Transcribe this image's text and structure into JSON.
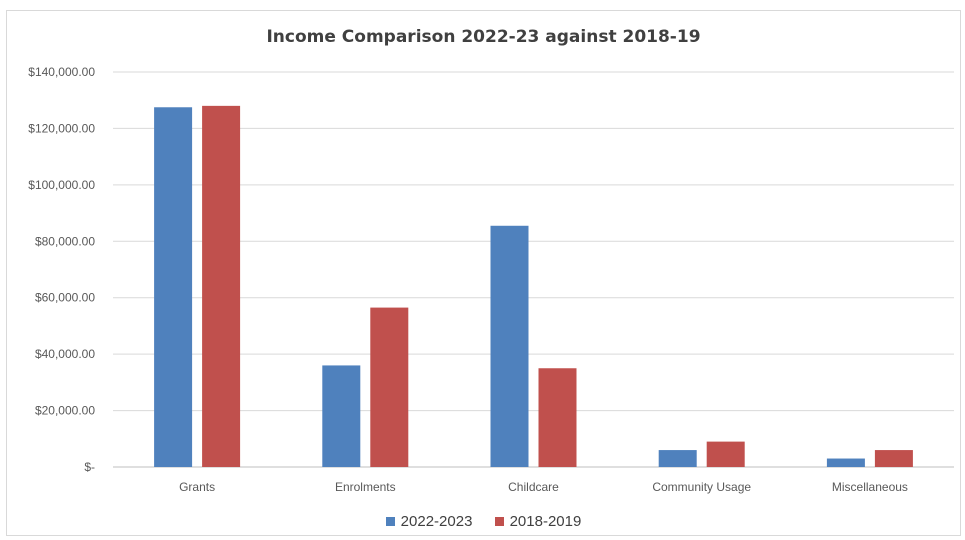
{
  "chart_data": {
    "type": "bar",
    "title": "Income Comparison 2022-23 against 2018-19",
    "xlabel": "",
    "ylabel": "",
    "categories": [
      "Grants",
      "Enrolments",
      "Childcare",
      "Community Usage",
      "Miscellaneous"
    ],
    "series": [
      {
        "name": "2022-2023",
        "color": "#4f81bd",
        "values": [
          127500,
          36000,
          85500,
          6000,
          3000
        ]
      },
      {
        "name": "2018-2019",
        "color": "#c0504d",
        "values": [
          128000,
          56500,
          35000,
          9000,
          6000
        ]
      }
    ],
    "ylim": [
      0,
      140000
    ],
    "yticks": [
      0,
      20000,
      40000,
      60000,
      80000,
      100000,
      120000,
      140000
    ],
    "ytick_labels": [
      "$-",
      "$20,000.00",
      "$40,000.00",
      "$60,000.00",
      "$80,000.00",
      "$100,000.00",
      "$120,000.00",
      "$140,000.00"
    ],
    "grid": true,
    "legend_position": "bottom"
  }
}
